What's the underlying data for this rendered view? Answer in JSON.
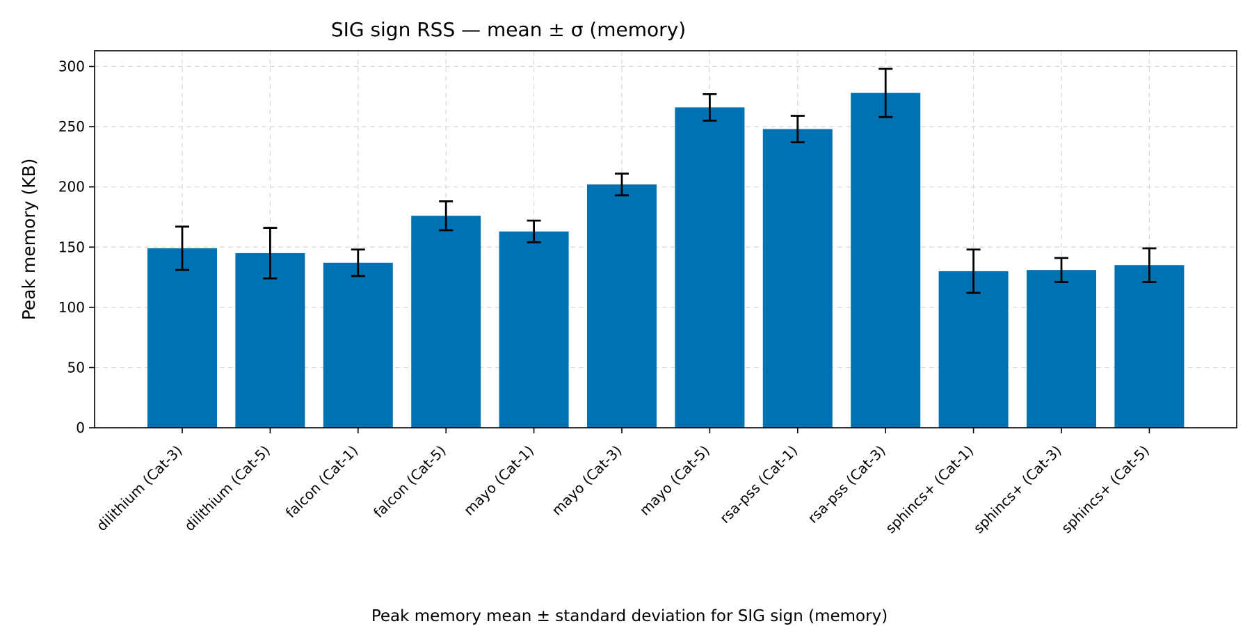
{
  "chart_data": {
    "type": "bar",
    "title": "SIG sign RSS — mean ± σ (memory)",
    "xlabel": "",
    "ylabel": "Peak memory (KB)",
    "caption": "Peak memory mean ± standard deviation for SIG sign (memory)",
    "ylim": [
      0,
      313
    ],
    "yticks": [
      0,
      50,
      100,
      150,
      200,
      250,
      300
    ],
    "grid": true,
    "bar_color": "#0072b2",
    "categories": [
      "dilithium (Cat-3)",
      "dilithium (Cat-5)",
      "falcon (Cat-1)",
      "falcon (Cat-5)",
      "mayo (Cat-1)",
      "mayo (Cat-3)",
      "mayo (Cat-5)",
      "rsa-pss (Cat-1)",
      "rsa-pss (Cat-3)",
      "sphincs+ (Cat-1)",
      "sphincs+ (Cat-3)",
      "sphincs+ (Cat-5)"
    ],
    "series": [
      {
        "values": [
          149,
          145,
          137,
          176,
          163,
          202,
          266,
          248,
          278,
          130,
          131,
          135
        ],
        "error": [
          18,
          21,
          11,
          12,
          9,
          9,
          11,
          11,
          20,
          18,
          10,
          14
        ]
      }
    ]
  }
}
